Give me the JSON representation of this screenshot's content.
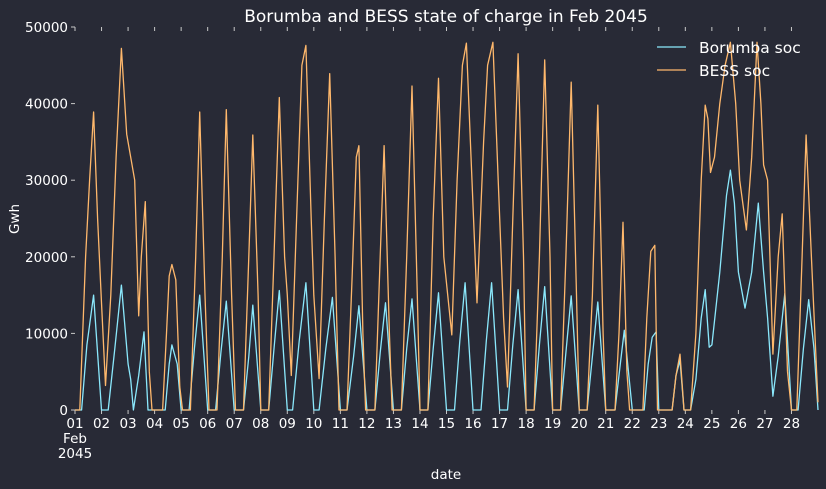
{
  "chart_data": {
    "type": "line",
    "title": "Borumba and BESS state of charge in Feb 2045",
    "xlabel": "date",
    "ylabel": "Gwh",
    "ylim": [
      0,
      50000
    ],
    "yticks": [
      0,
      10000,
      20000,
      30000,
      40000,
      50000
    ],
    "x_domain_days": [
      1,
      29
    ],
    "x_ticks": [
      {
        "day": 1,
        "lines": [
          "01",
          "Feb",
          "2045"
        ]
      },
      {
        "day": 2,
        "lines": [
          "02"
        ]
      },
      {
        "day": 3,
        "lines": [
          "03"
        ]
      },
      {
        "day": 4,
        "lines": [
          "04"
        ]
      },
      {
        "day": 5,
        "lines": [
          "05"
        ]
      },
      {
        "day": 6,
        "lines": [
          "06"
        ]
      },
      {
        "day": 7,
        "lines": [
          "07"
        ]
      },
      {
        "day": 8,
        "lines": [
          "08"
        ]
      },
      {
        "day": 9,
        "lines": [
          "09"
        ]
      },
      {
        "day": 10,
        "lines": [
          "10"
        ]
      },
      {
        "day": 11,
        "lines": [
          "11"
        ]
      },
      {
        "day": 12,
        "lines": [
          "12"
        ]
      },
      {
        "day": 13,
        "lines": [
          "13"
        ]
      },
      {
        "day": 14,
        "lines": [
          "14"
        ]
      },
      {
        "day": 15,
        "lines": [
          "15"
        ]
      },
      {
        "day": 16,
        "lines": [
          "16"
        ]
      },
      {
        "day": 17,
        "lines": [
          "17"
        ]
      },
      {
        "day": 18,
        "lines": [
          "18"
        ]
      },
      {
        "day": 19,
        "lines": [
          "19"
        ]
      },
      {
        "day": 20,
        "lines": [
          "20"
        ]
      },
      {
        "day": 21,
        "lines": [
          "21"
        ]
      },
      {
        "day": 22,
        "lines": [
          "22"
        ]
      },
      {
        "day": 23,
        "lines": [
          "23"
        ]
      },
      {
        "day": 24,
        "lines": [
          "24"
        ]
      },
      {
        "day": 25,
        "lines": [
          "25"
        ]
      },
      {
        "day": 26,
        "lines": [
          "26"
        ]
      },
      {
        "day": 27,
        "lines": [
          "27"
        ]
      },
      {
        "day": 28,
        "lines": [
          "28"
        ]
      }
    ],
    "legend_position": "top-right",
    "series": [
      {
        "name": "Borumba soc",
        "color": "#8be9fd",
        "points": [
          [
            1.0,
            0
          ],
          [
            1.25,
            0
          ],
          [
            1.45,
            8500
          ],
          [
            1.7,
            15000
          ],
          [
            2.0,
            0
          ],
          [
            2.25,
            0
          ],
          [
            2.5,
            8000
          ],
          [
            2.75,
            16300
          ],
          [
            3.0,
            6000
          ],
          [
            3.1,
            4000
          ],
          [
            3.2,
            0
          ],
          [
            3.4,
            4500
          ],
          [
            3.6,
            10200
          ],
          [
            3.75,
            0
          ],
          [
            4.0,
            0
          ],
          [
            4.4,
            0
          ],
          [
            4.55,
            6000
          ],
          [
            4.65,
            8500
          ],
          [
            4.85,
            6000
          ],
          [
            5.0,
            0
          ],
          [
            5.3,
            0
          ],
          [
            5.5,
            8000
          ],
          [
            5.7,
            15000
          ],
          [
            6.0,
            0
          ],
          [
            6.3,
            0
          ],
          [
            6.5,
            7500
          ],
          [
            6.7,
            14200
          ],
          [
            7.0,
            0
          ],
          [
            7.35,
            0
          ],
          [
            7.55,
            7000
          ],
          [
            7.7,
            13700
          ],
          [
            8.0,
            0
          ],
          [
            8.3,
            0
          ],
          [
            8.5,
            8000
          ],
          [
            8.7,
            15600
          ],
          [
            9.0,
            0
          ],
          [
            9.2,
            0
          ],
          [
            9.45,
            9000
          ],
          [
            9.7,
            16600
          ],
          [
            10.0,
            0
          ],
          [
            10.2,
            0
          ],
          [
            10.45,
            8000
          ],
          [
            10.7,
            14700
          ],
          [
            11.0,
            0
          ],
          [
            11.25,
            0
          ],
          [
            11.5,
            7000
          ],
          [
            11.7,
            13600
          ],
          [
            12.0,
            0
          ],
          [
            12.3,
            0
          ],
          [
            12.5,
            7500
          ],
          [
            12.7,
            14000
          ],
          [
            13.0,
            0
          ],
          [
            13.3,
            0
          ],
          [
            13.5,
            8000
          ],
          [
            13.7,
            14500
          ],
          [
            14.0,
            0
          ],
          [
            14.3,
            0
          ],
          [
            14.5,
            8000
          ],
          [
            14.7,
            15300
          ],
          [
            15.0,
            0
          ],
          [
            15.3,
            0
          ],
          [
            15.5,
            9000
          ],
          [
            15.7,
            16600
          ],
          [
            16.0,
            0
          ],
          [
            16.3,
            0
          ],
          [
            16.5,
            9000
          ],
          [
            16.7,
            16600
          ],
          [
            17.0,
            0
          ],
          [
            17.3,
            0
          ],
          [
            17.5,
            8500
          ],
          [
            17.7,
            15700
          ],
          [
            18.0,
            0
          ],
          [
            18.3,
            0
          ],
          [
            18.5,
            8500
          ],
          [
            18.7,
            16100
          ],
          [
            19.0,
            0
          ],
          [
            19.3,
            0
          ],
          [
            19.5,
            7500
          ],
          [
            19.7,
            14900
          ],
          [
            20.0,
            0
          ],
          [
            20.3,
            0
          ],
          [
            20.5,
            7000
          ],
          [
            20.7,
            14100
          ],
          [
            21.0,
            0
          ],
          [
            21.35,
            0
          ],
          [
            21.55,
            6000
          ],
          [
            21.7,
            10400
          ],
          [
            22.0,
            0
          ],
          [
            22.45,
            0
          ],
          [
            22.6,
            6000
          ],
          [
            22.75,
            9500
          ],
          [
            22.9,
            10200
          ],
          [
            23.0,
            0
          ],
          [
            23.5,
            0
          ],
          [
            23.65,
            4500
          ],
          [
            23.8,
            6500
          ],
          [
            23.95,
            0
          ],
          [
            24.2,
            0
          ],
          [
            24.4,
            4000
          ],
          [
            24.6,
            12000
          ],
          [
            24.75,
            15700
          ],
          [
            24.9,
            8200
          ],
          [
            25.0,
            8500
          ],
          [
            25.3,
            18000
          ],
          [
            25.55,
            28000
          ],
          [
            25.7,
            31300
          ],
          [
            25.85,
            27000
          ],
          [
            26.0,
            18000
          ],
          [
            26.25,
            13300
          ],
          [
            26.5,
            18000
          ],
          [
            26.75,
            27000
          ],
          [
            26.95,
            18000
          ],
          [
            27.1,
            12000
          ],
          [
            27.3,
            1800
          ],
          [
            27.5,
            7000
          ],
          [
            27.75,
            15200
          ],
          [
            28.0,
            0
          ],
          [
            28.25,
            0
          ],
          [
            28.45,
            8000
          ],
          [
            28.65,
            14400
          ],
          [
            28.85,
            8000
          ],
          [
            29.0,
            0
          ]
        ]
      },
      {
        "name": "BESS soc",
        "color": "#ffb86c",
        "points": [
          [
            1.0,
            0
          ],
          [
            1.18,
            0
          ],
          [
            1.4,
            20000
          ],
          [
            1.55,
            30000
          ],
          [
            1.7,
            38900
          ],
          [
            1.85,
            25000
          ],
          [
            2.0,
            14000
          ],
          [
            2.15,
            3200
          ],
          [
            2.35,
            15000
          ],
          [
            2.55,
            33000
          ],
          [
            2.75,
            47200
          ],
          [
            2.95,
            36000
          ],
          [
            3.1,
            33000
          ],
          [
            3.25,
            30000
          ],
          [
            3.4,
            12300
          ],
          [
            3.5,
            20000
          ],
          [
            3.65,
            27200
          ],
          [
            3.8,
            5000
          ],
          [
            3.9,
            0
          ],
          [
            4.0,
            0
          ],
          [
            4.3,
            0
          ],
          [
            4.45,
            10000
          ],
          [
            4.55,
            17500
          ],
          [
            4.65,
            19000
          ],
          [
            4.8,
            17000
          ],
          [
            4.95,
            3000
          ],
          [
            5.05,
            0
          ],
          [
            5.35,
            0
          ],
          [
            5.55,
            20000
          ],
          [
            5.7,
            38900
          ],
          [
            5.9,
            15000
          ],
          [
            6.05,
            0
          ],
          [
            6.35,
            0
          ],
          [
            6.55,
            20000
          ],
          [
            6.7,
            39200
          ],
          [
            6.9,
            15000
          ],
          [
            7.05,
            0
          ],
          [
            7.35,
            0
          ],
          [
            7.55,
            20000
          ],
          [
            7.7,
            35900
          ],
          [
            7.9,
            15000
          ],
          [
            8.0,
            0
          ],
          [
            8.3,
            0
          ],
          [
            8.5,
            20000
          ],
          [
            8.7,
            40800
          ],
          [
            8.9,
            20000
          ],
          [
            9.0,
            15000
          ],
          [
            9.15,
            4500
          ],
          [
            9.35,
            25000
          ],
          [
            9.55,
            45000
          ],
          [
            9.7,
            47600
          ],
          [
            9.9,
            25000
          ],
          [
            10.0,
            15000
          ],
          [
            10.2,
            4100
          ],
          [
            10.4,
            25000
          ],
          [
            10.6,
            43900
          ],
          [
            10.8,
            20000
          ],
          [
            10.95,
            0
          ],
          [
            11.25,
            0
          ],
          [
            11.45,
            18000
          ],
          [
            11.6,
            33000
          ],
          [
            11.7,
            34500
          ],
          [
            11.85,
            10000
          ],
          [
            11.95,
            0
          ],
          [
            12.3,
            0
          ],
          [
            12.5,
            20000
          ],
          [
            12.65,
            34500
          ],
          [
            12.85,
            10000
          ],
          [
            12.95,
            0
          ],
          [
            13.3,
            0
          ],
          [
            13.5,
            20000
          ],
          [
            13.7,
            42300
          ],
          [
            13.9,
            15000
          ],
          [
            14.0,
            0
          ],
          [
            14.3,
            0
          ],
          [
            14.5,
            25000
          ],
          [
            14.7,
            43300
          ],
          [
            14.9,
            20000
          ],
          [
            15.2,
            9800
          ],
          [
            15.4,
            30000
          ],
          [
            15.6,
            45000
          ],
          [
            15.75,
            47900
          ],
          [
            15.9,
            35000
          ],
          [
            16.15,
            14000
          ],
          [
            16.4,
            35000
          ],
          [
            16.55,
            45000
          ],
          [
            16.75,
            48000
          ],
          [
            16.95,
            30000
          ],
          [
            17.15,
            12000
          ],
          [
            17.3,
            3000
          ],
          [
            17.5,
            25000
          ],
          [
            17.7,
            46500
          ],
          [
            17.9,
            20000
          ],
          [
            18.0,
            0
          ],
          [
            18.05,
            0
          ],
          [
            18.3,
            0
          ],
          [
            18.5,
            20000
          ],
          [
            18.7,
            45700
          ],
          [
            18.9,
            20000
          ],
          [
            19.0,
            0
          ],
          [
            19.3,
            0
          ],
          [
            19.5,
            20000
          ],
          [
            19.7,
            42800
          ],
          [
            19.9,
            15000
          ],
          [
            20.0,
            0
          ],
          [
            20.3,
            0
          ],
          [
            20.5,
            15000
          ],
          [
            20.7,
            39800
          ],
          [
            20.9,
            10000
          ],
          [
            21.0,
            0
          ],
          [
            21.35,
            0
          ],
          [
            21.5,
            10000
          ],
          [
            21.65,
            24500
          ],
          [
            21.8,
            5000
          ],
          [
            21.9,
            0
          ],
          [
            22.4,
            0
          ],
          [
            22.55,
            12000
          ],
          [
            22.7,
            20700
          ],
          [
            22.85,
            21500
          ],
          [
            22.95,
            0
          ],
          [
            23.5,
            0
          ],
          [
            23.65,
            4500
          ],
          [
            23.8,
            7300
          ],
          [
            23.95,
            0
          ],
          [
            24.2,
            0
          ],
          [
            24.4,
            10000
          ],
          [
            24.6,
            30000
          ],
          [
            24.75,
            39800
          ],
          [
            24.85,
            38000
          ],
          [
            24.95,
            31000
          ],
          [
            25.1,
            33000
          ],
          [
            25.3,
            40000
          ],
          [
            25.5,
            45000
          ],
          [
            25.7,
            48000
          ],
          [
            25.9,
            40000
          ],
          [
            26.05,
            30000
          ],
          [
            26.3,
            23500
          ],
          [
            26.5,
            33000
          ],
          [
            26.7,
            48000
          ],
          [
            26.85,
            40000
          ],
          [
            26.95,
            32000
          ],
          [
            27.1,
            30000
          ],
          [
            27.3,
            7300
          ],
          [
            27.5,
            20000
          ],
          [
            27.65,
            25600
          ],
          [
            27.85,
            5000
          ],
          [
            28.0,
            0
          ],
          [
            28.2,
            0
          ],
          [
            28.4,
            20000
          ],
          [
            28.55,
            35900
          ],
          [
            28.75,
            20000
          ],
          [
            29.0,
            1000
          ]
        ]
      }
    ]
  }
}
